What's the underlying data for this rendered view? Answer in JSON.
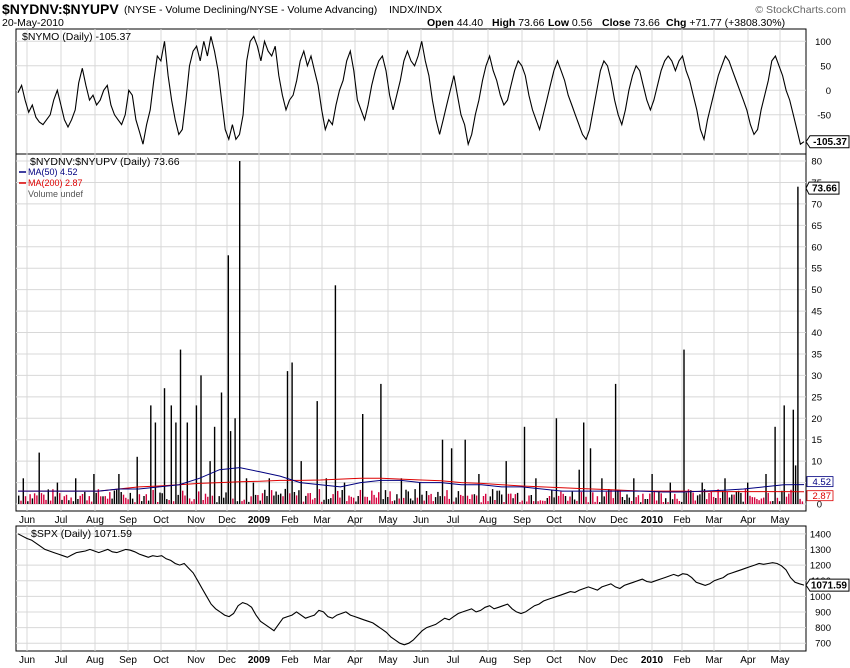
{
  "header": {
    "symbol": "$NYDNV:$NYUPV",
    "desc": "(NYSE - Volume Declining/NYSE - Volume Advancing)",
    "exchange": "INDX/INDX",
    "brand": "© StockCharts.com",
    "date": "20-May-2010",
    "ohlc": [
      {
        "label": "Open",
        "value": "44.40"
      },
      {
        "label": "High",
        "value": "73.66"
      },
      {
        "label": "Low",
        "value": "0.56"
      },
      {
        "label": "Close",
        "value": "73.66"
      },
      {
        "label": "Chg",
        "value": "+71.77 (+3808.30%)"
      }
    ]
  },
  "chart_data": [
    {
      "type": "line",
      "label": "$NYMO (Daily) -105.37",
      "y_ticks": [
        "100",
        "50",
        "0",
        "-50"
      ],
      "ylim": [
        -130,
        125
      ],
      "last_value": "-105.37",
      "color": "#000000",
      "values": [
        -5,
        10,
        -20,
        -45,
        -30,
        -55,
        -65,
        -70,
        -60,
        -50,
        -20,
        0,
        -30,
        -60,
        -75,
        -60,
        -40,
        15,
        45,
        10,
        -20,
        -10,
        -30,
        -20,
        0,
        10,
        -30,
        -50,
        -60,
        -70,
        -50,
        0,
        -10,
        -60,
        -85,
        -110,
        -70,
        -40,
        20,
        70,
        60,
        100,
        30,
        -20,
        -60,
        -90,
        -80,
        -20,
        50,
        80,
        90,
        60,
        100,
        70,
        110,
        80,
        40,
        -20,
        -80,
        -100,
        -70,
        -100,
        -90,
        -50,
        60,
        100,
        110,
        90,
        60,
        100,
        80,
        70,
        90,
        30,
        -10,
        -40,
        -20,
        -10,
        20,
        60,
        80,
        50,
        70,
        40,
        10,
        -40,
        -80,
        -60,
        -70,
        -30,
        0,
        20,
        60,
        80,
        40,
        -20,
        -40,
        -60,
        -30,
        10,
        40,
        60,
        70,
        40,
        -10,
        -40,
        -10,
        20,
        60,
        80,
        60,
        50,
        70,
        100,
        60,
        30,
        -20,
        -60,
        -90,
        -60,
        -30,
        0,
        30,
        -10,
        -50,
        -70,
        -110,
        -90,
        -50,
        -20,
        20,
        50,
        70,
        40,
        20,
        -10,
        -30,
        -20,
        10,
        40,
        60,
        50,
        30,
        -10,
        -40,
        -60,
        -80,
        -50,
        -20,
        10,
        40,
        60,
        40,
        20,
        -10,
        -30,
        -50,
        -70,
        -90,
        -100,
        -80,
        -40,
        0,
        40,
        60,
        50,
        20,
        -20,
        -50,
        -70,
        -40,
        0,
        30,
        50,
        40,
        10,
        -20,
        -40,
        -20,
        10,
        40,
        60,
        70,
        60,
        40,
        60,
        70,
        40,
        20,
        -10,
        -40,
        -80,
        -100,
        -60,
        -30,
        0,
        30,
        50,
        70,
        60,
        40,
        20,
        0,
        -20,
        -40,
        -70,
        -90,
        -80,
        -40,
        -10,
        20,
        60,
        70,
        50,
        30,
        0,
        -20,
        -50,
        -80,
        -110,
        -105
      ]
    },
    {
      "type": "bar",
      "label": "$NYDNV:$NYUPV (Daily) 73.66",
      "legend": [
        {
          "name": "MA(50) 4.52",
          "color": "#000080"
        },
        {
          "name": "MA(200) 2.87",
          "color": "#dd0000"
        },
        {
          "name": "Volume undef",
          "color": "#555555"
        }
      ],
      "y_ticks": [
        "80",
        "75",
        "70",
        "65",
        "60",
        "55",
        "50",
        "45",
        "40",
        "35",
        "30",
        "25",
        "20",
        "15",
        "10",
        "5",
        "0"
      ],
      "ylim": [
        0,
        80
      ],
      "last_value": "73.66",
      "ma50_value": "4.52",
      "ma200_value": "2.87",
      "tall_bars": [
        {
          "i": 2,
          "v": 6
        },
        {
          "i": 9,
          "v": 12
        },
        {
          "i": 17,
          "v": 5
        },
        {
          "i": 25,
          "v": 6
        },
        {
          "i": 33,
          "v": 7
        },
        {
          "i": 44,
          "v": 7
        },
        {
          "i": 52,
          "v": 11
        },
        {
          "i": 58,
          "v": 23
        },
        {
          "i": 60,
          "v": 19
        },
        {
          "i": 64,
          "v": 27
        },
        {
          "i": 67,
          "v": 23
        },
        {
          "i": 69,
          "v": 19
        },
        {
          "i": 71,
          "v": 36
        },
        {
          "i": 74,
          "v": 19
        },
        {
          "i": 78,
          "v": 23
        },
        {
          "i": 80,
          "v": 30
        },
        {
          "i": 84,
          "v": 10
        },
        {
          "i": 86,
          "v": 18
        },
        {
          "i": 89,
          "v": 26
        },
        {
          "i": 92,
          "v": 58
        },
        {
          "i": 93,
          "v": 17
        },
        {
          "i": 95,
          "v": 20
        },
        {
          "i": 97,
          "v": 80
        },
        {
          "i": 100,
          "v": 6
        },
        {
          "i": 103,
          "v": 5
        },
        {
          "i": 110,
          "v": 6
        },
        {
          "i": 118,
          "v": 31
        },
        {
          "i": 120,
          "v": 33
        },
        {
          "i": 124,
          "v": 10
        },
        {
          "i": 131,
          "v": 24
        },
        {
          "i": 135,
          "v": 6
        },
        {
          "i": 139,
          "v": 51
        },
        {
          "i": 143,
          "v": 5
        },
        {
          "i": 151,
          "v": 21
        },
        {
          "i": 159,
          "v": 28
        },
        {
          "i": 168,
          "v": 6
        },
        {
          "i": 176,
          "v": 5
        },
        {
          "i": 186,
          "v": 15
        },
        {
          "i": 190,
          "v": 13
        },
        {
          "i": 196,
          "v": 15
        },
        {
          "i": 202,
          "v": 7
        },
        {
          "i": 214,
          "v": 10
        },
        {
          "i": 222,
          "v": 18
        },
        {
          "i": 227,
          "v": 6
        },
        {
          "i": 236,
          "v": 20
        },
        {
          "i": 246,
          "v": 8
        },
        {
          "i": 248,
          "v": 19
        },
        {
          "i": 251,
          "v": 13
        },
        {
          "i": 256,
          "v": 6
        },
        {
          "i": 262,
          "v": 28
        },
        {
          "i": 270,
          "v": 6
        },
        {
          "i": 278,
          "v": 7
        },
        {
          "i": 286,
          "v": 5
        },
        {
          "i": 292,
          "v": 36
        },
        {
          "i": 300,
          "v": 5
        },
        {
          "i": 310,
          "v": 6
        },
        {
          "i": 320,
          "v": 5
        },
        {
          "i": 328,
          "v": 7
        },
        {
          "i": 332,
          "v": 18
        },
        {
          "i": 336,
          "v": 23
        },
        {
          "i": 340,
          "v": 22
        },
        {
          "i": 341,
          "v": 9
        },
        {
          "i": 342,
          "v": 74
        }
      ],
      "ma50": [
        3,
        3,
        3,
        3,
        3,
        3.5,
        3.5,
        4,
        4.5,
        6,
        8,
        8.5,
        7.5,
        6.5,
        5,
        4.5,
        4,
        5,
        5.5,
        5.5,
        5,
        5,
        4.5,
        4.5,
        4,
        4,
        3.5,
        3,
        3,
        3,
        3,
        3,
        2.8,
        2.8,
        3,
        3.2,
        3.5,
        4,
        4.5,
        4.52
      ],
      "ma200": [
        3,
        3,
        3,
        3,
        3,
        3.5,
        4,
        4.2,
        4.5,
        4.8,
        5,
        5.2,
        5.3,
        5.5,
        5.5,
        5.6,
        5.8,
        6,
        6,
        5.8,
        5.6,
        5.4,
        5,
        4.8,
        4.5,
        4.2,
        4,
        3.8,
        3.6,
        3.4,
        3.2,
        3,
        3,
        3,
        2.9,
        2.9,
        2.9,
        2.9,
        2.9,
        2.87
      ]
    },
    {
      "type": "line",
      "label": "$SPX (Daily) 1071.59",
      "y_ticks": [
        "1400",
        "1300",
        "1200",
        "1100",
        "1000",
        "900",
        "800",
        "700"
      ],
      "ylim": [
        650,
        1450
      ],
      "last_value": "1071.59",
      "color": "#000000",
      "values": [
        1400,
        1385,
        1370,
        1360,
        1340,
        1320,
        1300,
        1290,
        1280,
        1270,
        1260,
        1250,
        1265,
        1280,
        1285,
        1290,
        1300,
        1290,
        1280,
        1290,
        1300,
        1285,
        1280,
        1290,
        1300,
        1295,
        1285,
        1270,
        1260,
        1250,
        1260,
        1255,
        1260,
        1240,
        1230,
        1210,
        1200,
        1210,
        1180,
        1150,
        1100,
        1050,
        1000,
        950,
        920,
        900,
        880,
        870,
        890,
        940,
        960,
        950,
        930,
        880,
        840,
        820,
        800,
        780,
        820,
        860,
        870,
        880,
        900,
        880,
        860,
        870,
        880,
        910,
        900,
        870,
        860,
        880,
        890,
        900,
        880,
        870,
        860,
        850,
        840,
        830,
        810,
        790,
        770,
        740,
        720,
        700,
        690,
        700,
        720,
        750,
        780,
        800,
        810,
        820,
        840,
        860,
        850,
        870,
        890,
        900,
        910,
        920,
        900,
        910,
        930,
        940,
        920,
        930,
        940,
        950,
        920,
        900,
        890,
        900,
        920,
        940,
        950,
        970,
        980,
        990,
        1000,
        1010,
        1020,
        1030,
        1025,
        1040,
        1050,
        1060,
        1050,
        1040,
        1060,
        1070,
        1080,
        1060,
        1050,
        1070,
        1080,
        1090,
        1100,
        1110,
        1095,
        1090,
        1100,
        1110,
        1120,
        1130,
        1140,
        1130,
        1145,
        1140,
        1120,
        1090,
        1080,
        1070,
        1080,
        1100,
        1110,
        1120,
        1140,
        1150,
        1160,
        1170,
        1180,
        1190,
        1200,
        1210,
        1205,
        1210,
        1215,
        1210,
        1195,
        1170,
        1120,
        1090,
        1080,
        1071.59
      ]
    }
  ],
  "x_axis": {
    "labels": [
      "Jun",
      "Jul",
      "Aug",
      "Sep",
      "Oct",
      "Nov",
      "Dec",
      "2009",
      "Feb",
      "Mar",
      "Apr",
      "May",
      "Jun",
      "Jul",
      "Aug",
      "Sep",
      "Oct",
      "Nov",
      "Dec",
      "2010",
      "Feb",
      "Mar",
      "Apr",
      "May"
    ],
    "bold": [
      "2009",
      "2010"
    ]
  }
}
